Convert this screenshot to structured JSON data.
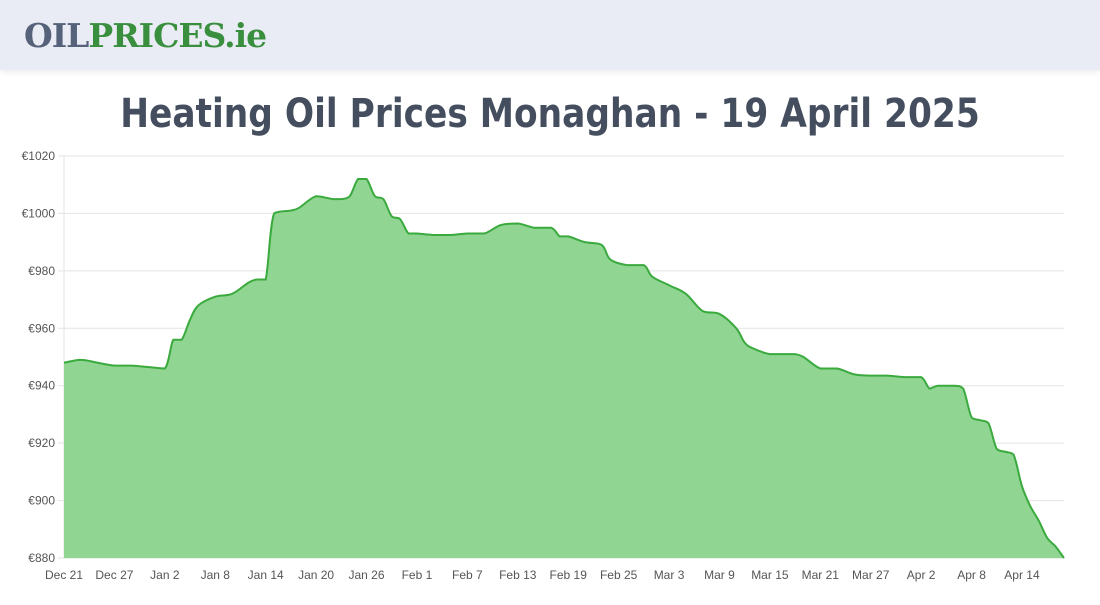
{
  "header": {
    "logo_part1": "OIL",
    "logo_part2": "PRICES.ie"
  },
  "page": {
    "title": "Heating Oil Prices Monaghan - 19 April 2025"
  },
  "colors": {
    "logo_dark": "#56627a",
    "logo_green": "#3a8f3e",
    "line": "#3aaa3e",
    "fill": "#90d592",
    "title": "#444e5e",
    "header_bg": "#e9ecf4"
  },
  "chart_data": {
    "type": "area",
    "title": "Heating Oil Prices Monaghan - 19 April 2025",
    "xlabel": "",
    "ylabel": "",
    "ylim": [
      880,
      1020
    ],
    "grid": true,
    "legend": null,
    "y_ticks": [
      "€880",
      "€900",
      "€920",
      "€940",
      "€960",
      "€980",
      "€1000",
      "€1020"
    ],
    "x_ticks": [
      "Dec 21",
      "Dec 27",
      "Jan 2",
      "Jan 8",
      "Jan 14",
      "Jan 20",
      "Jan 26",
      "Feb 1",
      "Feb 7",
      "Feb 13",
      "Feb 19",
      "Feb 25",
      "Mar 3",
      "Mar 9",
      "Mar 15",
      "Mar 21",
      "Mar 27",
      "Apr 2",
      "Apr 8",
      "Apr 14"
    ],
    "x": [
      "Dec 21",
      "Dec 23",
      "Dec 25",
      "Dec 27",
      "Dec 29",
      "Dec 31",
      "Jan 2",
      "Jan 3",
      "Jan 4",
      "Jan 5",
      "Jan 6",
      "Jan 8",
      "Jan 10",
      "Jan 12",
      "Jan 13",
      "Jan 14",
      "Jan 15",
      "Jan 17",
      "Jan 18",
      "Jan 20",
      "Jan 22",
      "Jan 23",
      "Jan 24",
      "Jan 25",
      "Jan 26",
      "Jan 27",
      "Jan 28",
      "Jan 29",
      "Jan 30",
      "Jan 31",
      "Feb 1",
      "Feb 3",
      "Feb 5",
      "Feb 7",
      "Feb 9",
      "Feb 11",
      "Feb 13",
      "Feb 15",
      "Feb 17",
      "Feb 18",
      "Feb 19",
      "Feb 21",
      "Feb 23",
      "Feb 24",
      "Feb 26",
      "Feb 28",
      "Mar 1",
      "Mar 3",
      "Mar 5",
      "Mar 7",
      "Mar 9",
      "Mar 11",
      "Mar 12",
      "Mar 13",
      "Mar 15",
      "Mar 17",
      "Mar 18",
      "Mar 19",
      "Mar 21",
      "Mar 23",
      "Mar 25",
      "Mar 27",
      "Mar 29",
      "Mar 31",
      "Apr 2",
      "Apr 3",
      "Apr 4",
      "Apr 6",
      "Apr 7",
      "Apr 8",
      "Apr 9",
      "Apr 10",
      "Apr 11",
      "Apr 12",
      "Apr 13",
      "Apr 14",
      "Apr 15",
      "Apr 16",
      "Apr 17",
      "Apr 18",
      "Apr 19"
    ],
    "values": [
      948,
      949,
      948,
      947,
      947,
      946.5,
      946,
      956,
      956,
      963,
      968,
      971,
      972,
      976,
      977,
      977,
      1000,
      1001,
      1002,
      1006,
      1005,
      1005,
      1006,
      1012,
      1012,
      1006,
      1005,
      999,
      998,
      993,
      993,
      992.5,
      992.5,
      993,
      993,
      996,
      996.5,
      995,
      995,
      992,
      992,
      990,
      989,
      984,
      982,
      982,
      978,
      975,
      972,
      966,
      965,
      960,
      955,
      953,
      951,
      951,
      951,
      950,
      946,
      946,
      944,
      943.5,
      943.5,
      943,
      943,
      939,
      940,
      940,
      939,
      929,
      928,
      927,
      918,
      917,
      916,
      905,
      898,
      893,
      887,
      884,
      880
    ]
  }
}
